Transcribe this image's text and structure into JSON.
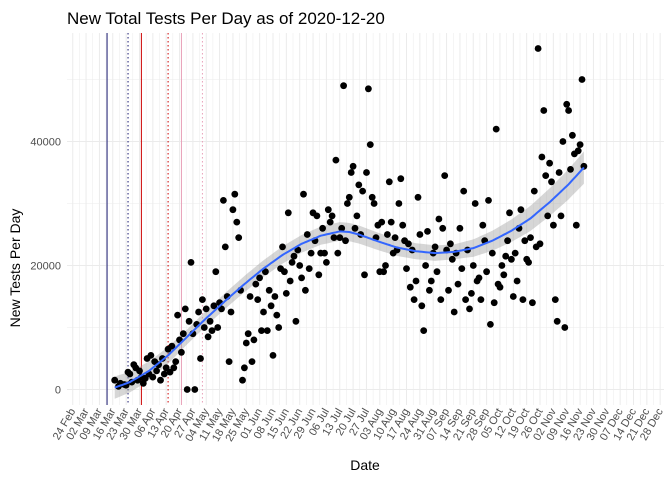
{
  "chart_data": {
    "type": "scatter",
    "title": "New Total Tests Per Day as of 2020-12-20",
    "xlabel": "Date",
    "ylabel": "New Tests Per Day",
    "x_tick_labels": [
      "24 Feb",
      "02 Mar",
      "09 Mar",
      "16 Mar",
      "23 Mar",
      "30 Mar",
      "06 Apr",
      "13 Apr",
      "20 Apr",
      "27 Apr",
      "04 May",
      "11 May",
      "18 May",
      "25 May",
      "01 Jun",
      "08 Jun",
      "15 Jun",
      "22 Jun",
      "29 Jun",
      "06 Jul",
      "13 Jul",
      "20 Jul",
      "27 Jul",
      "03 Aug",
      "10 Aug",
      "17 Aug",
      "24 Aug",
      "31 Aug",
      "07 Sep",
      "14 Sep",
      "21 Sep",
      "28 Sep",
      "05 Oct",
      "12 Oct",
      "19 Oct",
      "26 Oct",
      "02 Nov",
      "09 Nov",
      "16 Nov",
      "23 Nov",
      "30 Nov",
      "07 Dec",
      "14 Dec",
      "21 Dec",
      "28 Dec"
    ],
    "y_ticks": [
      0,
      20000,
      40000
    ],
    "y_tick_labels": [
      "0",
      "20000",
      "40000"
    ],
    "xlim_days": [
      -3,
      310
    ],
    "ylim": [
      -2500,
      57500
    ],
    "grid": true,
    "colors": {
      "points": "#000000",
      "smooth_line": "#3366FF",
      "confidence_band": "#999999",
      "vline_dark": "#191970",
      "vline_red": "#cc0000",
      "vline_pink": "#e8a0b8",
      "grid": "#ebebeb"
    },
    "vertical_lines": [
      {
        "day": 18,
        "color": "vline_dark",
        "style": "solid"
      },
      {
        "day": 29,
        "color": "vline_dark",
        "style": "dotted"
      },
      {
        "day": 36,
        "color": "vline_red",
        "style": "solid"
      },
      {
        "day": 50,
        "color": "vline_red",
        "style": "dotted"
      },
      {
        "day": 57,
        "color": "vline_pink",
        "style": "solid"
      },
      {
        "day": 68,
        "color": "vline_pink",
        "style": "dotted"
      }
    ],
    "smooth": [
      [
        22,
        300
      ],
      [
        30,
        1200
      ],
      [
        40,
        3000
      ],
      [
        50,
        5500
      ],
      [
        60,
        8500
      ],
      [
        70,
        11500
      ],
      [
        80,
        14300
      ],
      [
        90,
        17000
      ],
      [
        100,
        19500
      ],
      [
        110,
        21700
      ],
      [
        120,
        23500
      ],
      [
        130,
        24800
      ],
      [
        140,
        25500
      ],
      [
        145,
        25400
      ],
      [
        150,
        25000
      ],
      [
        160,
        23900
      ],
      [
        170,
        22900
      ],
      [
        180,
        22300
      ],
      [
        190,
        22000
      ],
      [
        200,
        22200
      ],
      [
        210,
        22800
      ],
      [
        220,
        24000
      ],
      [
        230,
        25600
      ],
      [
        240,
        27600
      ],
      [
        250,
        30200
      ],
      [
        260,
        33100
      ],
      [
        268,
        35800
      ]
    ],
    "band_halfwidth": [
      [
        22,
        1800
      ],
      [
        60,
        1200
      ],
      [
        140,
        1500
      ],
      [
        200,
        1200
      ],
      [
        268,
        2600
      ]
    ],
    "points": [
      [
        22,
        1500
      ],
      [
        24,
        500
      ],
      [
        25,
        1000
      ],
      [
        27,
        800
      ],
      [
        28,
        700
      ],
      [
        29,
        2800
      ],
      [
        30,
        2500
      ],
      [
        31,
        1200
      ],
      [
        32,
        4000
      ],
      [
        33,
        3500
      ],
      [
        34,
        1500
      ],
      [
        35,
        3000
      ],
      [
        36,
        2000
      ],
      [
        37,
        1000
      ],
      [
        38,
        1800
      ],
      [
        39,
        5000
      ],
      [
        40,
        2500
      ],
      [
        41,
        5500
      ],
      [
        42,
        2000
      ],
      [
        43,
        4500
      ],
      [
        44,
        3000
      ],
      [
        45,
        4000
      ],
      [
        46,
        1500
      ],
      [
        47,
        5000
      ],
      [
        48,
        2500
      ],
      [
        49,
        3500
      ],
      [
        50,
        6500
      ],
      [
        51,
        2800
      ],
      [
        52,
        7000
      ],
      [
        53,
        3500
      ],
      [
        54,
        4500
      ],
      [
        55,
        12000
      ],
      [
        56,
        8000
      ],
      [
        57,
        6000
      ],
      [
        58,
        9000
      ],
      [
        59,
        13000
      ],
      [
        60,
        0
      ],
      [
        61,
        11000
      ],
      [
        62,
        20500
      ],
      [
        63,
        9000
      ],
      [
        64,
        0
      ],
      [
        65,
        10500
      ],
      [
        66,
        12500
      ],
      [
        67,
        5000
      ],
      [
        68,
        14500
      ],
      [
        69,
        10000
      ],
      [
        70,
        13000
      ],
      [
        71,
        8500
      ],
      [
        72,
        11000
      ],
      [
        73,
        9500
      ],
      [
        74,
        13500
      ],
      [
        75,
        19000
      ],
      [
        76,
        10000
      ],
      [
        77,
        14000
      ],
      [
        78,
        13000
      ],
      [
        79,
        30500
      ],
      [
        80,
        23000
      ],
      [
        81,
        15000
      ],
      [
        82,
        4500
      ],
      [
        83,
        12500
      ],
      [
        84,
        29000
      ],
      [
        85,
        31500
      ],
      [
        86,
        27000
      ],
      [
        87,
        24500
      ],
      [
        88,
        16000
      ],
      [
        89,
        1500
      ],
      [
        90,
        3500
      ],
      [
        91,
        7500
      ],
      [
        92,
        9000
      ],
      [
        93,
        15000
      ],
      [
        94,
        4500
      ],
      [
        95,
        8000
      ],
      [
        96,
        17000
      ],
      [
        97,
        14500
      ],
      [
        98,
        18000
      ],
      [
        99,
        9500
      ],
      [
        100,
        12500
      ],
      [
        101,
        19000
      ],
      [
        102,
        9500
      ],
      [
        103,
        16000
      ],
      [
        104,
        13500
      ],
      [
        105,
        5500
      ],
      [
        106,
        15000
      ],
      [
        107,
        12000
      ],
      [
        108,
        10000
      ],
      [
        109,
        19500
      ],
      [
        110,
        23000
      ],
      [
        111,
        19000
      ],
      [
        112,
        15500
      ],
      [
        113,
        28500
      ],
      [
        114,
        17500
      ],
      [
        115,
        20500
      ],
      [
        116,
        21500
      ],
      [
        117,
        11000
      ],
      [
        118,
        22500
      ],
      [
        119,
        20000
      ],
      [
        120,
        18000
      ],
      [
        121,
        31500
      ],
      [
        122,
        16000
      ],
      [
        123,
        25000
      ],
      [
        124,
        19500
      ],
      [
        125,
        22000
      ],
      [
        126,
        28500
      ],
      [
        127,
        24000
      ],
      [
        128,
        28000
      ],
      [
        129,
        18500
      ],
      [
        130,
        22000
      ],
      [
        131,
        26000
      ],
      [
        132,
        22000
      ],
      [
        133,
        20500
      ],
      [
        134,
        29000
      ],
      [
        135,
        27000
      ],
      [
        136,
        28000
      ],
      [
        137,
        24500
      ],
      [
        138,
        37000
      ],
      [
        139,
        22000
      ],
      [
        140,
        24500
      ],
      [
        141,
        26000
      ],
      [
        142,
        49000
      ],
      [
        143,
        24000
      ],
      [
        144,
        30000
      ],
      [
        145,
        31000
      ],
      [
        146,
        35000
      ],
      [
        147,
        36000
      ],
      [
        148,
        26000
      ],
      [
        149,
        28000
      ],
      [
        150,
        33000
      ],
      [
        151,
        25000
      ],
      [
        152,
        32000
      ],
      [
        153,
        18500
      ],
      [
        154,
        35000
      ],
      [
        155,
        48500
      ],
      [
        156,
        39500
      ],
      [
        157,
        31000
      ],
      [
        158,
        30000
      ],
      [
        159,
        24500
      ],
      [
        160,
        26500
      ],
      [
        161,
        19000
      ],
      [
        162,
        27000
      ],
      [
        163,
        19000
      ],
      [
        164,
        20000
      ],
      [
        165,
        25000
      ],
      [
        166,
        33500
      ],
      [
        167,
        27000
      ],
      [
        168,
        22000
      ],
      [
        169,
        24500
      ],
      [
        170,
        22500
      ],
      [
        171,
        30000
      ],
      [
        172,
        34000
      ],
      [
        173,
        26500
      ],
      [
        174,
        24000
      ],
      [
        175,
        19500
      ],
      [
        176,
        23500
      ],
      [
        177,
        16500
      ],
      [
        178,
        22500
      ],
      [
        179,
        14500
      ],
      [
        180,
        17500
      ],
      [
        181,
        31000
      ],
      [
        182,
        25000
      ],
      [
        183,
        13500
      ],
      [
        184,
        9500
      ],
      [
        185,
        20000
      ],
      [
        186,
        25500
      ],
      [
        187,
        16000
      ],
      [
        188,
        17500
      ],
      [
        189,
        22000
      ],
      [
        190,
        23000
      ],
      [
        191,
        19000
      ],
      [
        192,
        27500
      ],
      [
        193,
        14500
      ],
      [
        194,
        26000
      ],
      [
        195,
        34500
      ],
      [
        196,
        22500
      ],
      [
        197,
        16000
      ],
      [
        198,
        23500
      ],
      [
        199,
        21000
      ],
      [
        200,
        12500
      ],
      [
        201,
        22000
      ],
      [
        202,
        17000
      ],
      [
        203,
        26000
      ],
      [
        204,
        19500
      ],
      [
        205,
        32000
      ],
      [
        206,
        14500
      ],
      [
        207,
        22500
      ],
      [
        208,
        13000
      ],
      [
        209,
        15500
      ],
      [
        210,
        20000
      ],
      [
        211,
        30000
      ],
      [
        212,
        17500
      ],
      [
        213,
        18000
      ],
      [
        214,
        14500
      ],
      [
        215,
        26500
      ],
      [
        216,
        24000
      ],
      [
        217,
        19000
      ],
      [
        218,
        30500
      ],
      [
        219,
        10500
      ],
      [
        220,
        22000
      ],
      [
        221,
        14000
      ],
      [
        222,
        42000
      ],
      [
        223,
        17000
      ],
      [
        224,
        16500
      ],
      [
        225,
        20000
      ],
      [
        226,
        18500
      ],
      [
        227,
        21500
      ],
      [
        228,
        24000
      ],
      [
        229,
        28500
      ],
      [
        230,
        21000
      ],
      [
        231,
        15000
      ],
      [
        232,
        22000
      ],
      [
        233,
        17500
      ],
      [
        234,
        26000
      ],
      [
        235,
        29000
      ],
      [
        236,
        14500
      ],
      [
        237,
        24000
      ],
      [
        238,
        21000
      ],
      [
        239,
        20500
      ],
      [
        240,
        24500
      ],
      [
        241,
        14000
      ],
      [
        242,
        32000
      ],
      [
        243,
        23000
      ],
      [
        244,
        55000
      ],
      [
        245,
        23500
      ],
      [
        246,
        37500
      ],
      [
        247,
        45000
      ],
      [
        248,
        34500
      ],
      [
        249,
        28000
      ],
      [
        250,
        36500
      ],
      [
        251,
        33500
      ],
      [
        252,
        26500
      ],
      [
        253,
        14500
      ],
      [
        254,
        11000
      ],
      [
        255,
        35000
      ],
      [
        256,
        28000
      ],
      [
        257,
        40000
      ],
      [
        258,
        10000
      ],
      [
        259,
        46000
      ],
      [
        260,
        45000
      ],
      [
        261,
        35500
      ],
      [
        262,
        41000
      ],
      [
        263,
        38000
      ],
      [
        264,
        26500
      ],
      [
        265,
        38500
      ],
      [
        266,
        39500
      ],
      [
        267,
        50000
      ],
      [
        268,
        36000
      ]
    ]
  }
}
